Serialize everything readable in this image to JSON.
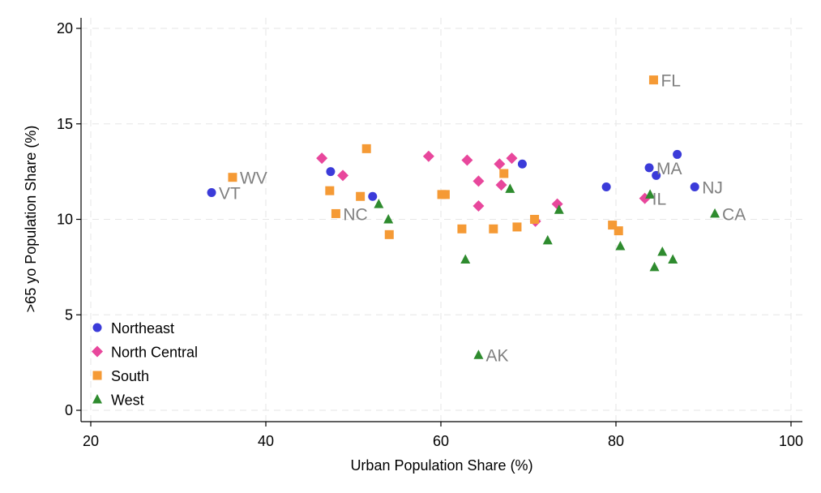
{
  "chart_data": {
    "type": "scatter",
    "title": "",
    "xlabel": "Urban Population Share (%)",
    "ylabel": ">65 yo Population Share (%)",
    "xlim": [
      20,
      100
    ],
    "ylim": [
      0,
      20
    ],
    "xticks": [
      20,
      40,
      60,
      80,
      100
    ],
    "yticks": [
      0,
      5,
      10,
      15,
      20
    ],
    "grid": true,
    "legend_position": "bottom-left",
    "series": [
      {
        "name": "Northeast",
        "marker": "circle",
        "color": "#3b3bd9",
        "points": [
          {
            "x": 33.8,
            "y": 11.4,
            "label": "VT"
          },
          {
            "x": 47.4,
            "y": 12.5
          },
          {
            "x": 52.2,
            "y": 11.2
          },
          {
            "x": 69.3,
            "y": 12.9
          },
          {
            "x": 78.9,
            "y": 11.7
          },
          {
            "x": 83.8,
            "y": 12.7,
            "label": "MA"
          },
          {
            "x": 84.6,
            "y": 12.3
          },
          {
            "x": 87.0,
            "y": 13.4
          },
          {
            "x": 89.0,
            "y": 11.7,
            "label": "NJ"
          }
        ]
      },
      {
        "name": "North Central",
        "marker": "diamond",
        "color": "#e8479c",
        "points": [
          {
            "x": 46.4,
            "y": 13.2
          },
          {
            "x": 48.8,
            "y": 12.3
          },
          {
            "x": 58.6,
            "y": 13.3
          },
          {
            "x": 63.0,
            "y": 13.1
          },
          {
            "x": 64.3,
            "y": 12.0
          },
          {
            "x": 64.3,
            "y": 10.7
          },
          {
            "x": 66.7,
            "y": 12.9
          },
          {
            "x": 66.9,
            "y": 11.8
          },
          {
            "x": 68.1,
            "y": 13.2
          },
          {
            "x": 70.8,
            "y": 9.9
          },
          {
            "x": 73.3,
            "y": 10.8
          },
          {
            "x": 83.3,
            "y": 11.1,
            "label": "IL"
          }
        ]
      },
      {
        "name": "South",
        "marker": "square",
        "color": "#f59a35",
        "points": [
          {
            "x": 36.2,
            "y": 12.2,
            "label": "WV"
          },
          {
            "x": 47.3,
            "y": 11.5
          },
          {
            "x": 48.0,
            "y": 10.3,
            "label": "NC"
          },
          {
            "x": 50.8,
            "y": 11.2
          },
          {
            "x": 51.5,
            "y": 13.7
          },
          {
            "x": 54.1,
            "y": 9.2
          },
          {
            "x": 60.1,
            "y": 11.3
          },
          {
            "x": 60.5,
            "y": 11.3
          },
          {
            "x": 62.4,
            "y": 9.5
          },
          {
            "x": 66.0,
            "y": 9.5
          },
          {
            "x": 67.2,
            "y": 12.4
          },
          {
            "x": 68.7,
            "y": 9.6
          },
          {
            "x": 70.7,
            "y": 10.0
          },
          {
            "x": 79.6,
            "y": 9.7
          },
          {
            "x": 80.3,
            "y": 9.4
          },
          {
            "x": 84.3,
            "y": 17.3,
            "label": "FL"
          }
        ]
      },
      {
        "name": "West",
        "marker": "triangle",
        "color": "#2e8b2e",
        "points": [
          {
            "x": 52.9,
            "y": 10.8
          },
          {
            "x": 54.0,
            "y": 10.0
          },
          {
            "x": 62.8,
            "y": 7.9
          },
          {
            "x": 64.3,
            "y": 2.9,
            "label": "AK"
          },
          {
            "x": 67.9,
            "y": 11.6
          },
          {
            "x": 72.2,
            "y": 8.9
          },
          {
            "x": 73.5,
            "y": 10.5
          },
          {
            "x": 80.5,
            "y": 8.6
          },
          {
            "x": 83.9,
            "y": 11.3
          },
          {
            "x": 84.4,
            "y": 7.5
          },
          {
            "x": 85.3,
            "y": 8.3
          },
          {
            "x": 86.5,
            "y": 7.9
          },
          {
            "x": 91.3,
            "y": 10.3,
            "label": "CA"
          }
        ]
      }
    ]
  }
}
